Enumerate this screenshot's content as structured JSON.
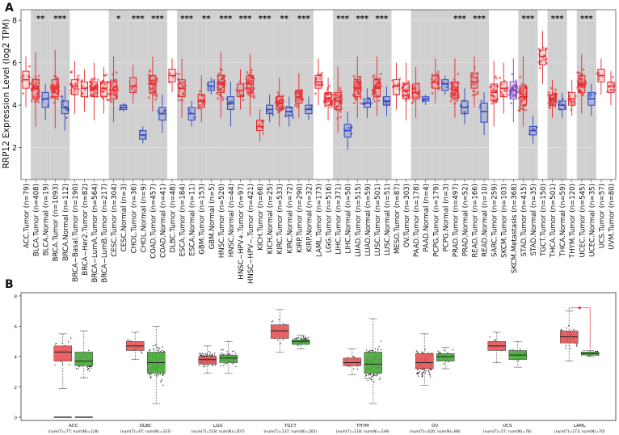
{
  "panels": {
    "a": "A",
    "b": "B"
  },
  "chart_data": [
    {
      "type": "box",
      "panel": "A",
      "ylabel": "RRP12 Expression Level (log2 TPM)",
      "ylim": [
        0.5,
        8.5
      ],
      "yticks": [
        2,
        4,
        6,
        8
      ],
      "yticklabels": [
        "2",
        "4",
        "6",
        "8"
      ],
      "colors": {
        "tumor": "#e8282e",
        "normal": "#2d44c2",
        "metastasis": "#7a45b8",
        "shade": "#d0d0d0"
      },
      "categories": [
        {
          "label": "ACC.Tumor (n=79)",
          "kind": "tumor",
          "median": 5.2,
          "q1": 4.8,
          "q3": 5.6,
          "lo": 3.9,
          "hi": 6.3,
          "shade": false,
          "sig": ""
        },
        {
          "label": "BLCA.Tumor (n=408)",
          "kind": "tumor",
          "median": 4.8,
          "q1": 4.3,
          "q3": 5.2,
          "lo": 3.0,
          "hi": 6.5,
          "shade": true,
          "sig": "**"
        },
        {
          "label": "BLCA.Normal (n=19)",
          "kind": "normal",
          "median": 4.3,
          "q1": 3.9,
          "q3": 4.6,
          "lo": 3.3,
          "hi": 5.0,
          "shade": true,
          "sig": ""
        },
        {
          "label": "BRCA.Tumor (n=1093)",
          "kind": "tumor",
          "median": 4.8,
          "q1": 4.4,
          "q3": 5.2,
          "lo": 2.9,
          "hi": 6.6,
          "shade": true,
          "sig": "***"
        },
        {
          "label": "BRCA.Normal (n=112)",
          "kind": "normal",
          "median": 3.9,
          "q1": 3.6,
          "q3": 4.2,
          "lo": 2.8,
          "hi": 4.9,
          "shade": true,
          "sig": ""
        },
        {
          "label": "BRCA−Basal.Tumor (n=190)",
          "kind": "tumor",
          "median": 4.9,
          "q1": 4.5,
          "q3": 5.2,
          "lo": 3.6,
          "hi": 6.1,
          "shade": false,
          "sig": ""
        },
        {
          "label": "BRCA−Her2.Tumor (n=82)",
          "kind": "tumor",
          "median": 4.8,
          "q1": 4.4,
          "q3": 5.1,
          "lo": 3.7,
          "hi": 5.7,
          "shade": false,
          "sig": ""
        },
        {
          "label": "BRCA−LumA.Tumor (n=564)",
          "kind": "tumor",
          "median": 4.8,
          "q1": 4.4,
          "q3": 5.1,
          "lo": 3.3,
          "hi": 6.0,
          "shade": false,
          "sig": ""
        },
        {
          "label": "BRCA−LumB.Tumor (n=217)",
          "kind": "tumor",
          "median": 4.8,
          "q1": 4.4,
          "q3": 5.1,
          "lo": 3.6,
          "hi": 5.8,
          "shade": false,
          "sig": ""
        },
        {
          "label": "CESC.Tumor (n=304)",
          "kind": "tumor",
          "median": 4.7,
          "q1": 4.3,
          "q3": 5.1,
          "lo": 3.2,
          "hi": 6.3,
          "shade": true,
          "sig": "*"
        },
        {
          "label": "CESC.Normal (n=3)",
          "kind": "normal",
          "median": 3.9,
          "q1": 3.8,
          "q3": 4.0,
          "lo": 3.7,
          "hi": 4.1,
          "shade": true,
          "sig": ""
        },
        {
          "label": "CHOL.Tumor (n=36)",
          "kind": "tumor",
          "median": 4.9,
          "q1": 4.6,
          "q3": 5.3,
          "lo": 4.1,
          "hi": 5.9,
          "shade": true,
          "sig": "***"
        },
        {
          "label": "CHOL.Normal (n=9)",
          "kind": "normal",
          "median": 2.6,
          "q1": 2.4,
          "q3": 2.8,
          "lo": 2.2,
          "hi": 3.0,
          "shade": true,
          "sig": ""
        },
        {
          "label": "COAD.Tumor (n=457)",
          "kind": "tumor",
          "median": 5.0,
          "q1": 4.6,
          "q3": 5.4,
          "lo": 3.7,
          "hi": 6.3,
          "shade": true,
          "sig": "***"
        },
        {
          "label": "COAD.Normal (n=41)",
          "kind": "normal",
          "median": 3.6,
          "q1": 3.3,
          "q3": 3.9,
          "lo": 2.7,
          "hi": 4.5,
          "shade": true,
          "sig": ""
        },
        {
          "label": "DLBC.Tumor (n=48)",
          "kind": "tumor",
          "median": 5.4,
          "q1": 5.1,
          "q3": 5.7,
          "lo": 4.6,
          "hi": 6.2,
          "shade": false,
          "sig": ""
        },
        {
          "label": "ESCA.Tumor (n=184)",
          "kind": "tumor",
          "median": 4.8,
          "q1": 4.4,
          "q3": 5.2,
          "lo": 3.4,
          "hi": 6.2,
          "shade": true,
          "sig": "***"
        },
        {
          "label": "ESCA.Normal (n=11)",
          "kind": "normal",
          "median": 3.6,
          "q1": 3.3,
          "q3": 3.9,
          "lo": 3.0,
          "hi": 4.2,
          "shade": true,
          "sig": ""
        },
        {
          "label": "GBM.Tumor (n=153)",
          "kind": "tumor",
          "median": 4.2,
          "q1": 3.9,
          "q3": 4.5,
          "lo": 3.2,
          "hi": 5.4,
          "shade": true,
          "sig": "**"
        },
        {
          "label": "GBM.Normal (n=5)",
          "kind": "normal",
          "median": 4.9,
          "q1": 4.7,
          "q3": 5.1,
          "lo": 4.5,
          "hi": 5.3,
          "shade": true,
          "sig": ""
        },
        {
          "label": "HNSC.Tumor (n=520)",
          "kind": "tumor",
          "median": 5.0,
          "q1": 4.6,
          "q3": 5.4,
          "lo": 3.4,
          "hi": 6.5,
          "shade": true,
          "sig": "***"
        },
        {
          "label": "HNSC.Normal (n=44)",
          "kind": "normal",
          "median": 4.1,
          "q1": 3.8,
          "q3": 4.4,
          "lo": 3.0,
          "hi": 5.1,
          "shade": true,
          "sig": ""
        },
        {
          "label": "HNSC−HPV+.Tumor (n=97)",
          "kind": "tumor",
          "median": 4.7,
          "q1": 4.4,
          "q3": 5.0,
          "lo": 3.8,
          "hi": 5.7,
          "shade": true,
          "sig": "***"
        },
        {
          "label": "HNSC−HPV−.Tumor (n=421)",
          "kind": "tumor",
          "median": 5.0,
          "q1": 4.6,
          "q3": 5.4,
          "lo": 3.5,
          "hi": 6.4,
          "shade": true,
          "sig": ""
        },
        {
          "label": "KICH.Tumor (n=66)",
          "kind": "tumor",
          "median": 3.0,
          "q1": 2.8,
          "q3": 3.3,
          "lo": 2.3,
          "hi": 3.8,
          "shade": true,
          "sig": "***"
        },
        {
          "label": "KICH.Normal (n=25)",
          "kind": "normal",
          "median": 3.8,
          "q1": 3.6,
          "q3": 4.0,
          "lo": 3.2,
          "hi": 4.5,
          "shade": true,
          "sig": ""
        },
        {
          "label": "KIRC.Tumor (n=533)",
          "kind": "tumor",
          "median": 4.1,
          "q1": 3.8,
          "q3": 4.4,
          "lo": 3.0,
          "hi": 5.3,
          "shade": true,
          "sig": "**"
        },
        {
          "label": "KIRC.Normal (n=72)",
          "kind": "normal",
          "median": 3.7,
          "q1": 3.5,
          "q3": 3.9,
          "lo": 3.0,
          "hi": 4.4,
          "shade": true,
          "sig": ""
        },
        {
          "label": "KIRP.Tumor (n=290)",
          "kind": "tumor",
          "median": 4.4,
          "q1": 4.1,
          "q3": 4.7,
          "lo": 3.4,
          "hi": 5.5,
          "shade": true,
          "sig": "***"
        },
        {
          "label": "KIRP.Normal (n=32)",
          "kind": "normal",
          "median": 3.8,
          "q1": 3.6,
          "q3": 4.0,
          "lo": 3.3,
          "hi": 4.4,
          "shade": true,
          "sig": ""
        },
        {
          "label": "LAML.Tumor (n=173)",
          "kind": "tumor",
          "median": 5.1,
          "q1": 4.8,
          "q3": 5.4,
          "lo": 4.0,
          "hi": 6.2,
          "shade": false,
          "sig": ""
        },
        {
          "label": "LGG.Tumor (n=516)",
          "kind": "tumor",
          "median": 4.3,
          "q1": 4.0,
          "q3": 4.6,
          "lo": 3.3,
          "hi": 5.3,
          "shade": false,
          "sig": ""
        },
        {
          "label": "LIHC.Tumor (n=371)",
          "kind": "tumor",
          "median": 4.2,
          "q1": 3.8,
          "q3": 4.6,
          "lo": 2.7,
          "hi": 5.8,
          "shade": true,
          "sig": "***"
        },
        {
          "label": "LIHC.Normal (n=50)",
          "kind": "normal",
          "median": 2.8,
          "q1": 2.5,
          "q3": 3.1,
          "lo": 1.9,
          "hi": 3.7,
          "shade": true,
          "sig": ""
        },
        {
          "label": "LUAD.Tumor (n=515)",
          "kind": "tumor",
          "median": 4.8,
          "q1": 4.4,
          "q3": 5.2,
          "lo": 3.4,
          "hi": 6.3,
          "shade": true,
          "sig": "***"
        },
        {
          "label": "LUAD.Normal (n=59)",
          "kind": "normal",
          "median": 4.1,
          "q1": 3.9,
          "q3": 4.3,
          "lo": 3.4,
          "hi": 4.8,
          "shade": true,
          "sig": ""
        },
        {
          "label": "LUSC.Tumor (n=501)",
          "kind": "tumor",
          "median": 4.8,
          "q1": 4.4,
          "q3": 5.2,
          "lo": 3.5,
          "hi": 6.3,
          "shade": true,
          "sig": "***"
        },
        {
          "label": "LUSC.Normal (n=51)",
          "kind": "normal",
          "median": 4.2,
          "q1": 4.0,
          "q3": 4.4,
          "lo": 3.5,
          "hi": 4.9,
          "shade": true,
          "sig": ""
        },
        {
          "label": "MESO.Tumor (n=87)",
          "kind": "tumor",
          "median": 4.9,
          "q1": 4.5,
          "q3": 5.2,
          "lo": 3.8,
          "hi": 6.0,
          "shade": false,
          "sig": ""
        },
        {
          "label": "OV.Tumor (n=303)",
          "kind": "tumor",
          "median": 4.7,
          "q1": 4.3,
          "q3": 5.0,
          "lo": 3.3,
          "hi": 6.0,
          "shade": false,
          "sig": ""
        },
        {
          "label": "PAAD.Tumor (n=178)",
          "kind": "tumor",
          "median": 4.6,
          "q1": 4.3,
          "q3": 5.0,
          "lo": 3.4,
          "hi": 5.8,
          "shade": true,
          "sig": ""
        },
        {
          "label": "PAAD.Normal (n=4)",
          "kind": "normal",
          "median": 4.3,
          "q1": 4.2,
          "q3": 4.4,
          "lo": 4.0,
          "hi": 4.5,
          "shade": true,
          "sig": ""
        },
        {
          "label": "PCPG.Tumor (n=179)",
          "kind": "tumor",
          "median": 5.1,
          "q1": 4.8,
          "q3": 5.4,
          "lo": 4.1,
          "hi": 6.2,
          "shade": true,
          "sig": ""
        },
        {
          "label": "PCPG.Normal (n=3)",
          "kind": "normal",
          "median": 5.0,
          "q1": 4.7,
          "q3": 5.2,
          "lo": 4.5,
          "hi": 5.4,
          "shade": true,
          "sig": ""
        },
        {
          "label": "PRAD.Tumor (n=497)",
          "kind": "tumor",
          "median": 4.7,
          "q1": 4.3,
          "q3": 5.1,
          "lo": 3.4,
          "hi": 6.2,
          "shade": true,
          "sig": "***"
        },
        {
          "label": "PRAD.Normal (n=52)",
          "kind": "normal",
          "median": 3.9,
          "q1": 3.6,
          "q3": 4.2,
          "lo": 3.1,
          "hi": 4.8,
          "shade": true,
          "sig": ""
        },
        {
          "label": "READ.Tumor (n=166)",
          "kind": "tumor",
          "median": 5.1,
          "q1": 4.8,
          "q3": 5.5,
          "lo": 3.9,
          "hi": 6.3,
          "shade": true,
          "sig": "***"
        },
        {
          "label": "READ.Normal (n=10)",
          "kind": "normal",
          "median": 3.7,
          "q1": 3.2,
          "q3": 4.1,
          "lo": 2.6,
          "hi": 4.6,
          "shade": true,
          "sig": ""
        },
        {
          "label": "SARC.Tumor (n=259)",
          "kind": "tumor",
          "median": 4.6,
          "q1": 4.2,
          "q3": 5.0,
          "lo": 3.0,
          "hi": 6.1,
          "shade": false,
          "sig": ""
        },
        {
          "label": "SKCM.Tumor (n=103)",
          "kind": "tumor",
          "median": 4.8,
          "q1": 4.4,
          "q3": 5.1,
          "lo": 3.6,
          "hi": 6.0,
          "shade": false,
          "sig": ""
        },
        {
          "label": "SKCM.Metastasis (n=368)",
          "kind": "metastasis",
          "median": 4.7,
          "q1": 4.3,
          "q3": 5.1,
          "lo": 3.2,
          "hi": 6.2,
          "shade": false,
          "sig": ""
        },
        {
          "label": "STAD.Tumor (n=415)",
          "kind": "tumor",
          "median": 4.4,
          "q1": 4.0,
          "q3": 4.9,
          "lo": 3.0,
          "hi": 6.3,
          "shade": true,
          "sig": "***"
        },
        {
          "label": "STAD.Normal (n=35)",
          "kind": "normal",
          "median": 2.8,
          "q1": 2.6,
          "q3": 3.0,
          "lo": 2.2,
          "hi": 3.5,
          "shade": true,
          "sig": ""
        },
        {
          "label": "TGCT.Tumor (n=150)",
          "kind": "tumor",
          "median": 6.3,
          "q1": 5.9,
          "q3": 6.6,
          "lo": 5.0,
          "hi": 7.5,
          "shade": false,
          "sig": ""
        },
        {
          "label": "THCA.Tumor (n=501)",
          "kind": "tumor",
          "median": 4.3,
          "q1": 4.0,
          "q3": 4.5,
          "lo": 3.4,
          "hi": 5.2,
          "shade": true,
          "sig": "***"
        },
        {
          "label": "THCA.Normal (n=59)",
          "kind": "normal",
          "median": 4.0,
          "q1": 3.8,
          "q3": 4.2,
          "lo": 3.4,
          "hi": 4.6,
          "shade": true,
          "sig": ""
        },
        {
          "label": "THYM.Tumor (n=120)",
          "kind": "tumor",
          "median": 4.3,
          "q1": 4.0,
          "q3": 4.6,
          "lo": 3.5,
          "hi": 5.2,
          "shade": false,
          "sig": ""
        },
        {
          "label": "UCEC.Tumor (n=545)",
          "kind": "tumor",
          "median": 5.0,
          "q1": 4.6,
          "q3": 5.4,
          "lo": 3.6,
          "hi": 6.4,
          "shade": true,
          "sig": "***"
        },
        {
          "label": "UCEC.Normal (n=35)",
          "kind": "normal",
          "median": 4.3,
          "q1": 4.0,
          "q3": 4.6,
          "lo": 3.5,
          "hi": 5.0,
          "shade": true,
          "sig": ""
        },
        {
          "label": "UCS.Tumor (n=57)",
          "kind": "tumor",
          "median": 5.4,
          "q1": 5.1,
          "q3": 5.7,
          "lo": 4.5,
          "hi": 6.2,
          "shade": false,
          "sig": ""
        },
        {
          "label": "UVM.Tumor (n=80)",
          "kind": "tumor",
          "median": 4.9,
          "q1": 4.6,
          "q3": 5.1,
          "lo": 4.0,
          "hi": 5.6,
          "shade": false,
          "sig": ""
        }
      ]
    },
    {
      "type": "box",
      "panel": "B",
      "ylim": [
        0,
        8
      ],
      "yticks": [
        0,
        2,
        4,
        6,
        8
      ],
      "yticklabels": [
        "0",
        "2",
        "4",
        "6",
        "8"
      ],
      "colors": {
        "tumor": "#e8585c",
        "normal": "#4caa3e"
      },
      "groups": [
        {
          "name": "ACC",
          "counts": "(num(T)=77; num(N)=128)",
          "tumor": {
            "median": 4.3,
            "q1": 3.7,
            "q3": 4.7,
            "lo": 1.9,
            "hi": 5.5
          },
          "normal": {
            "median": 3.7,
            "q1": 3.4,
            "q3": 4.3,
            "lo": 2.6,
            "hi": 5.7
          },
          "zero_bars": true,
          "highlight": false
        },
        {
          "name": "DLBC",
          "counts": "(num(T)=47; num(N)=337)",
          "tumor": {
            "median": 4.7,
            "q1": 4.4,
            "q3": 5.0,
            "lo": 3.8,
            "hi": 5.6
          },
          "normal": {
            "median": 3.6,
            "q1": 2.9,
            "q3": 4.3,
            "lo": 0.9,
            "hi": 6.0
          },
          "zero_bars": false,
          "highlight": false
        },
        {
          "name": "LGG",
          "counts": "(num(T)=518; num(N)=207)",
          "tumor": {
            "median": 3.8,
            "q1": 3.5,
            "q3": 4.0,
            "lo": 2.9,
            "hi": 4.7
          },
          "normal": {
            "median": 3.9,
            "q1": 3.6,
            "q3": 4.1,
            "lo": 2.9,
            "hi": 5.0
          },
          "zero_bars": false,
          "highlight": false
        },
        {
          "name": "TGCT",
          "counts": "(num(T)=137; num(N)=165)",
          "tumor": {
            "median": 5.7,
            "q1": 5.2,
            "q3": 6.1,
            "lo": 4.3,
            "hi": 7.1
          },
          "normal": {
            "median": 5.0,
            "q1": 4.8,
            "q3": 5.1,
            "lo": 4.5,
            "hi": 5.4
          },
          "zero_bars": false,
          "highlight": false
        },
        {
          "name": "THYM",
          "counts": "(num(T)=118; num(N)=339)",
          "tumor": {
            "median": 3.6,
            "q1": 3.4,
            "q3": 3.9,
            "lo": 2.8,
            "hi": 4.5
          },
          "normal": {
            "median": 3.5,
            "q1": 2.9,
            "q3": 4.3,
            "lo": 0.9,
            "hi": 6.5
          },
          "zero_bars": false,
          "highlight": false
        },
        {
          "name": "OV",
          "counts": "(num(T)=426; num(N)=88)",
          "tumor": {
            "median": 3.6,
            "q1": 3.2,
            "q3": 4.2,
            "lo": 2.1,
            "hi": 5.5
          },
          "normal": {
            "median": 4.0,
            "q1": 3.7,
            "q3": 4.2,
            "lo": 3.2,
            "hi": 4.6
          },
          "zero_bars": false,
          "highlight": false
        },
        {
          "name": "UCS",
          "counts": "(num(T)=57; num(N)=78)",
          "tumor": {
            "median": 4.7,
            "q1": 4.4,
            "q3": 5.0,
            "lo": 3.6,
            "hi": 5.6
          },
          "normal": {
            "median": 4.1,
            "q1": 3.8,
            "q3": 4.4,
            "lo": 3.3,
            "hi": 5.0
          },
          "zero_bars": false,
          "highlight": false
        },
        {
          "name": "LAML",
          "counts": "(num(T)=173; num(N)=70)",
          "tumor": {
            "median": 5.3,
            "q1": 4.9,
            "q3": 5.7,
            "lo": 3.7,
            "hi": 7.0
          },
          "normal": {
            "median": 4.2,
            "q1": 4.1,
            "q3": 4.3,
            "lo": 4.0,
            "hi": 4.4
          },
          "zero_bars": false,
          "highlight": true
        }
      ]
    }
  ]
}
